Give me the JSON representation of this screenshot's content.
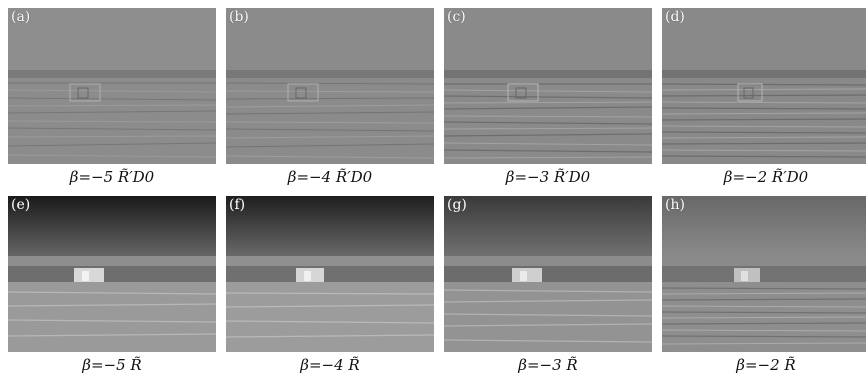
{
  "panels": [
    {
      "tag": "(a)",
      "caption": "β=−5 R̃′D0",
      "style": "residual"
    },
    {
      "tag": "(b)",
      "caption": "β=−4 R̃′D0",
      "style": "residual"
    },
    {
      "tag": "(c)",
      "caption": "β=−3 R̃′D0",
      "style": "residual"
    },
    {
      "tag": "(d)",
      "caption": "β=−2 R̃′D0",
      "style": "residual"
    },
    {
      "tag": "(e)",
      "caption": "β=−5 R̃",
      "style": "dark-sky"
    },
    {
      "tag": "(f)",
      "caption": "β=−4 R̃",
      "style": "dark-sky"
    },
    {
      "tag": "(g)",
      "caption": "β=−3 R̃",
      "style": "mid-sky"
    },
    {
      "tag": "(h)",
      "caption": "β=−2 R̃",
      "style": "light-sky"
    }
  ],
  "colors": {
    "residual_sky": "#8a8a8a",
    "residual_ground": "#808080",
    "dark_sky_top": "#1e1e1e",
    "dark_sky_bottom": "#6a6a6a",
    "ground_light": "#a8a8a8"
  }
}
